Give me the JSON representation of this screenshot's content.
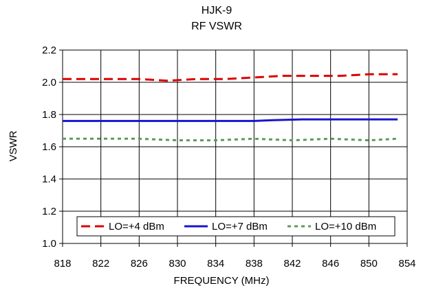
{
  "chart_data": {
    "type": "line",
    "title": "HJK-9",
    "subtitle": "RF VSWR",
    "xlabel": "FREQUENCY (MHz)",
    "ylabel": "VSWR",
    "xlim": [
      818,
      854
    ],
    "ylim": [
      1.0,
      2.2
    ],
    "xticks": [
      818,
      822,
      826,
      830,
      834,
      838,
      842,
      846,
      850,
      854
    ],
    "yticks": [
      1.0,
      1.2,
      1.4,
      1.6,
      1.8,
      2.0,
      2.2
    ],
    "xtick_labels": [
      "818",
      "822",
      "826",
      "830",
      "834",
      "838",
      "842",
      "846",
      "850",
      "854"
    ],
    "ytick_labels": [
      "1.0",
      "1.2",
      "1.4",
      "1.6",
      "1.8",
      "2.0",
      "2.2"
    ],
    "grid": true,
    "legend_position": "bottom",
    "series": [
      {
        "name": "LO=+4 dBm",
        "color": "#dd0000",
        "dash": "dashed",
        "x": [
          818,
          823,
          826,
          829,
          832,
          835,
          838,
          841,
          844,
          847,
          850,
          853
        ],
        "y": [
          2.02,
          2.02,
          2.02,
          2.01,
          2.02,
          2.02,
          2.03,
          2.04,
          2.04,
          2.04,
          2.05,
          2.05
        ]
      },
      {
        "name": "LO=+7 dBm",
        "color": "#1515d0",
        "dash": "solid",
        "x": [
          818,
          823,
          828,
          833,
          838,
          840,
          843,
          848,
          853
        ],
        "y": [
          1.76,
          1.76,
          1.76,
          1.76,
          1.76,
          1.765,
          1.77,
          1.77,
          1.77
        ]
      },
      {
        "name": "LO=+10 dBm",
        "color": "#5a9a5a",
        "dash": "dotted",
        "x": [
          818,
          822,
          826,
          830,
          834,
          838,
          842,
          846,
          850,
          853
        ],
        "y": [
          1.65,
          1.65,
          1.65,
          1.64,
          1.64,
          1.65,
          1.64,
          1.65,
          1.64,
          1.65
        ]
      }
    ]
  }
}
